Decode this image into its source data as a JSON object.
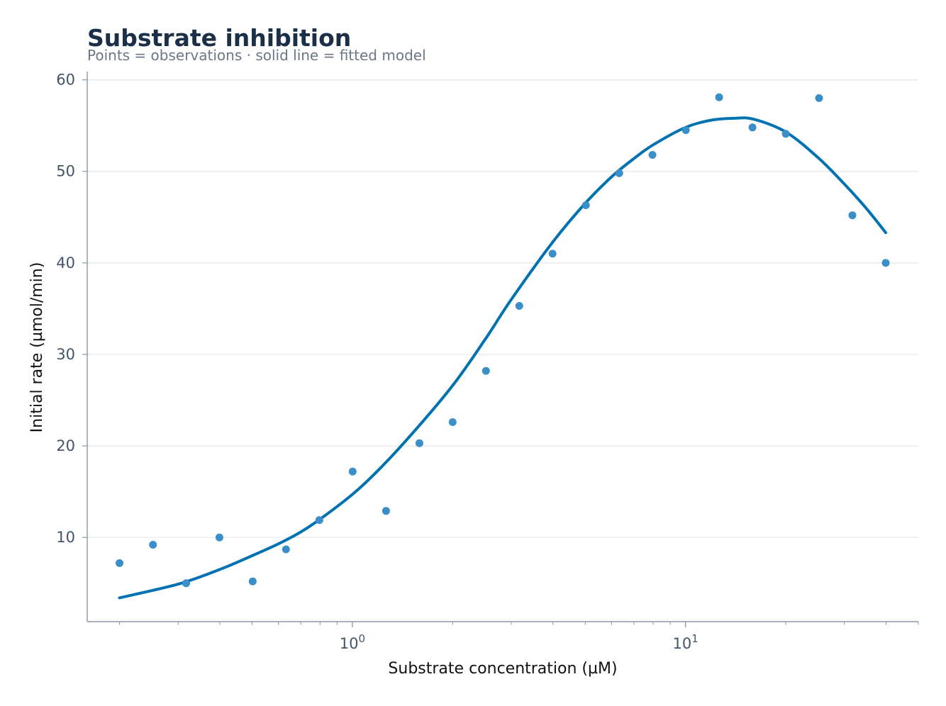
{
  "chart_data": {
    "type": "scatter",
    "title": "Substrate inhibition",
    "subtitle": "Points = observations · solid line = fitted model",
    "xlabel": "Substrate concentration (µM)",
    "ylabel": "Initial rate (µmol/min)",
    "xscale": "log",
    "xlim": [
      0.16,
      50
    ],
    "ylim": [
      0.8,
      60.9
    ],
    "yticks": [
      10,
      20,
      30,
      40,
      50,
      60
    ],
    "xticks_major": [
      {
        "value": 1,
        "base": "10",
        "exponent": "0"
      },
      {
        "value": 10,
        "base": "10",
        "exponent": "1"
      }
    ],
    "grid": "horizontal",
    "series": [
      {
        "kind": "points",
        "color": "#3a8fc8",
        "x": [
          0.2,
          0.252,
          0.317,
          0.399,
          0.502,
          0.632,
          0.796,
          1.002,
          1.262,
          1.589,
          2.0,
          2.518,
          3.17,
          3.991,
          5.024,
          6.325,
          7.962,
          10.02,
          12.62,
          15.89,
          20.0,
          25.18,
          31.7,
          39.91
        ],
        "y": [
          7.2,
          9.2,
          5.0,
          10.0,
          5.2,
          8.7,
          11.9,
          17.2,
          12.9,
          20.3,
          22.6,
          28.2,
          35.3,
          41.0,
          46.3,
          49.8,
          51.8,
          54.5,
          58.1,
          54.8,
          54.1,
          58.0,
          45.2,
          40.0
        ]
      },
      {
        "kind": "fitted-line",
        "color": "#0072b2",
        "x": [
          0.2,
          0.3,
          0.4,
          0.5,
          0.6,
          0.7,
          0.8,
          1.0,
          1.2,
          1.5,
          2.0,
          2.5,
          3.0,
          4.0,
          5.0,
          6.0,
          7.0,
          8.0,
          10.0,
          12.0,
          14.0,
          16.0,
          20.0,
          25.0,
          30.0,
          35.0,
          39.91
        ],
        "y": [
          3.4,
          4.9,
          6.5,
          8.0,
          9.3,
          10.6,
          12.0,
          14.7,
          17.4,
          21.2,
          26.6,
          31.6,
          36.0,
          42.3,
          46.5,
          49.4,
          51.4,
          52.9,
          54.8,
          55.6,
          55.8,
          55.7,
          54.3,
          51.5,
          48.6,
          45.9,
          43.3
        ]
      }
    ]
  }
}
